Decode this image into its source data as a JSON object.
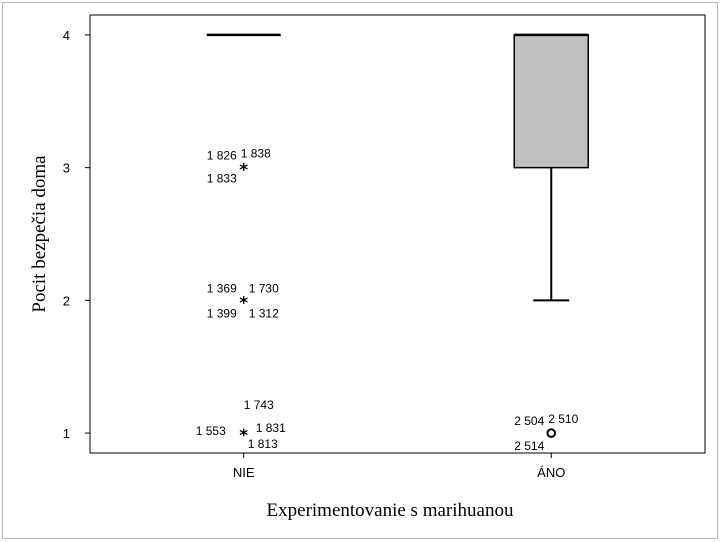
{
  "chart_data": {
    "type": "boxplot",
    "title": "",
    "xlabel": "Experimentovanie s marihuanou",
    "ylabel": "Pocit bezpečia doma",
    "categories": [
      "NIE",
      "ÁNO"
    ],
    "ylim": [
      0.85,
      4.15
    ],
    "yticks": [
      1,
      2,
      3,
      4
    ],
    "grid": false,
    "legend": "none",
    "box_fill": "#c0c0c0",
    "boxes": [
      {
        "category": "NIE",
        "min": 4,
        "q1": 4,
        "median": 4,
        "q3": 4,
        "max": 4
      },
      {
        "category": "ÁNO",
        "min": 2,
        "q1": 3,
        "median": 4,
        "q3": 4,
        "max": 4
      }
    ],
    "outliers": [
      {
        "category": "NIE",
        "value": 3,
        "marker": "extreme",
        "labels": [
          "1 826",
          "1 838",
          "1 833"
        ]
      },
      {
        "category": "NIE",
        "value": 2,
        "marker": "extreme",
        "labels": [
          "1 369",
          "1 730",
          "1 399",
          "1 312"
        ]
      },
      {
        "category": "NIE",
        "value": 1,
        "marker": "extreme",
        "labels": [
          "1 743",
          "1 553",
          "1 831",
          "1 813"
        ]
      },
      {
        "category": "ÁNO",
        "value": 1,
        "marker": "outlier",
        "labels": [
          "2 504",
          "2 510",
          "2 514"
        ]
      }
    ]
  }
}
